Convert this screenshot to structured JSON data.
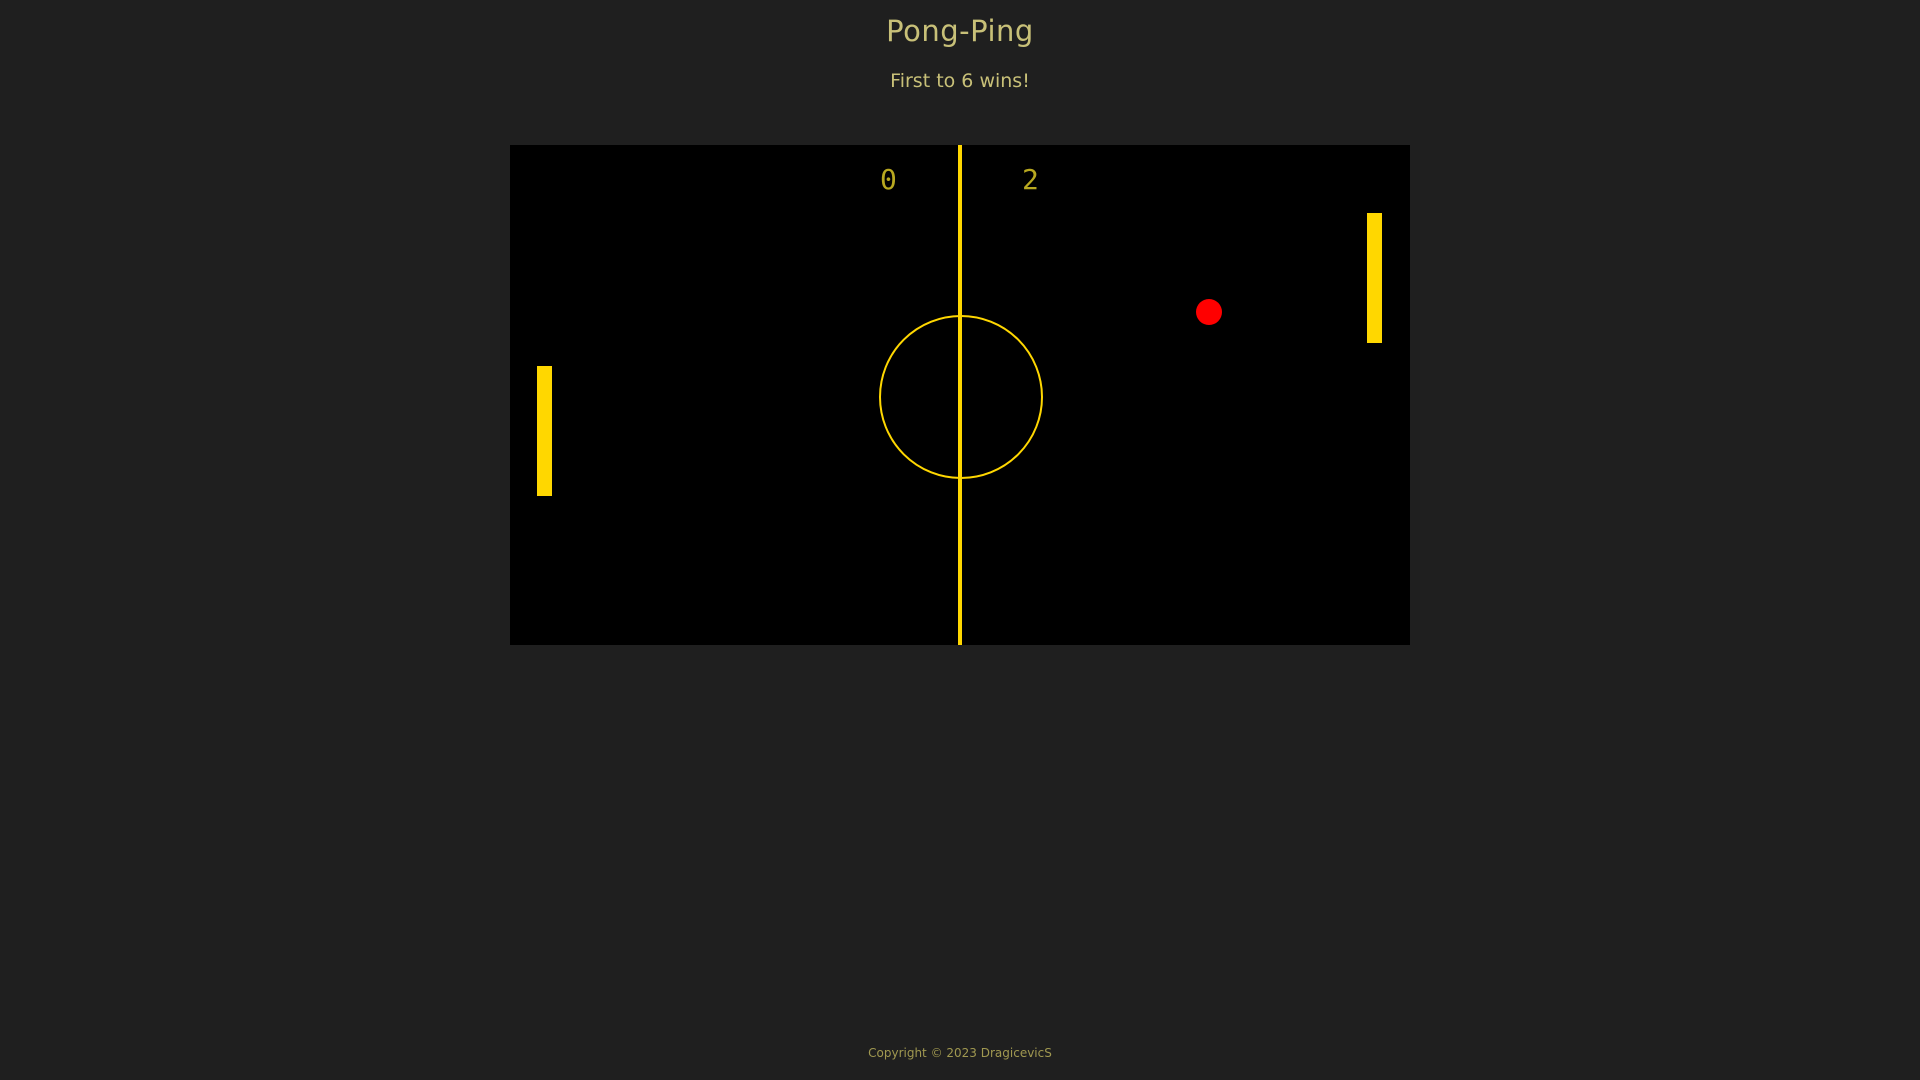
{
  "header": {
    "title": "Pong-Ping",
    "subtitle": "First to 6 wins!"
  },
  "game": {
    "score_left": "0",
    "score_right": "2",
    "colors": {
      "field": "#000000",
      "lines": "#ffd700",
      "paddles": "#ffd700",
      "ball": "#ff0000",
      "score": "#b8a820"
    }
  },
  "footer": {
    "copyright": "Copyright © 2023 DragicevicS"
  }
}
